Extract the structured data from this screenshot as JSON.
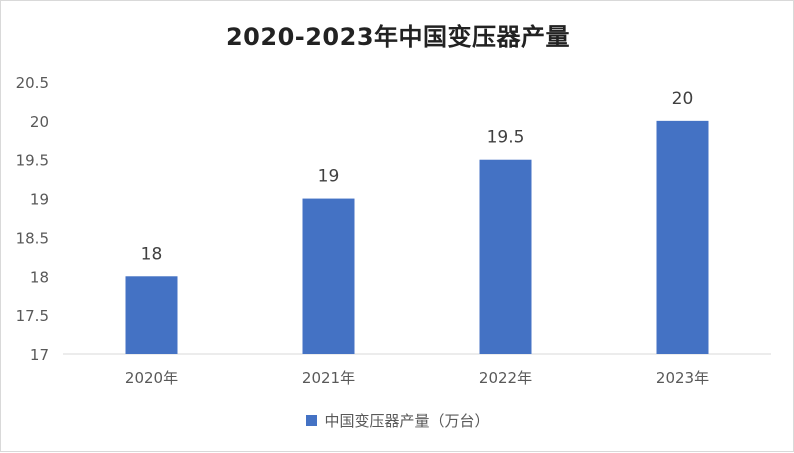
{
  "chart_data": {
    "type": "bar",
    "title": "2020-2023年中国变压器产量",
    "categories": [
      "2020年",
      "2021年",
      "2022年",
      "2023年"
    ],
    "series": [
      {
        "name": "中国变压器产量（万台）",
        "values": [
          18,
          19,
          19.5,
          20
        ]
      }
    ],
    "data_labels": [
      "18",
      "19",
      "19.5",
      "20"
    ],
    "ylim": [
      17,
      20.5
    ],
    "y_ticks": [
      "17",
      "17.5",
      "18",
      "18.5",
      "19",
      "19.5",
      "20",
      "20.5"
    ],
    "grid": false,
    "legend_position": "bottom",
    "bar_color": "#4472c4",
    "axis_color": "#d9d9d9",
    "text_color": "#595959"
  }
}
